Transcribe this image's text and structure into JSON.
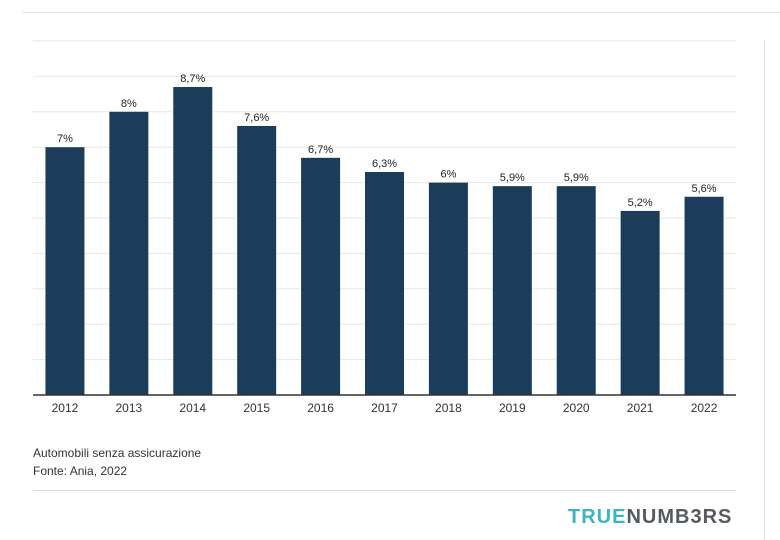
{
  "chart_data": {
    "type": "bar",
    "categories": [
      "2012",
      "2013",
      "2014",
      "2015",
      "2016",
      "2017",
      "2018",
      "2019",
      "2020",
      "2021",
      "2022"
    ],
    "values": [
      7,
      8,
      8.7,
      7.6,
      6.7,
      6.3,
      6,
      5.9,
      5.9,
      5.2,
      5.6
    ],
    "value_labels": [
      "7%",
      "8%",
      "8,7%",
      "7,6%",
      "6,7%",
      "6,3%",
      "6%",
      "5,9%",
      "5,9%",
      "5,2%",
      "5,6%"
    ],
    "ylim": [
      0,
      10
    ],
    "grid": true,
    "bar_color": "#1b3d5a",
    "title": "",
    "xlabel": "",
    "ylabel": ""
  },
  "caption": {
    "line1": "Automobili senza assicurazione",
    "line2": "Fonte: Ania, 2022"
  },
  "logo": {
    "part1": "TRUE",
    "part2": "NUMB3RS",
    "color1": "#3bb5c3",
    "color2": "#555a60"
  }
}
